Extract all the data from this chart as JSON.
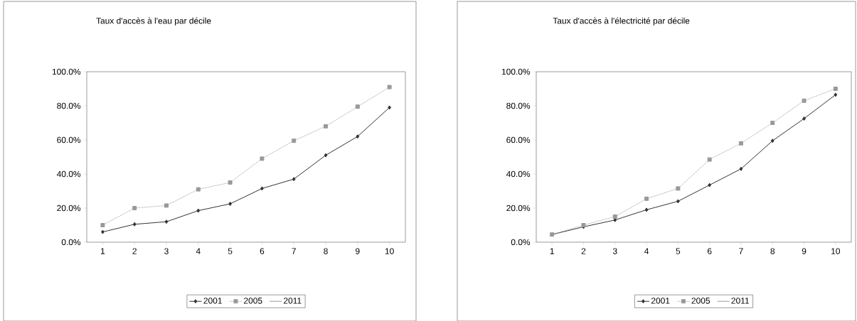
{
  "chart_data": [
    {
      "type": "line",
      "title": "Taux d'accès à l'eau par décile",
      "categories": [
        "1",
        "2",
        "3",
        "4",
        "5",
        "6",
        "7",
        "8",
        "9",
        "10"
      ],
      "series": [
        {
          "name": "2001",
          "color": "#333333",
          "marker": "diamond",
          "line_style": "solid",
          "values": [
            6,
            10.5,
            12,
            18.5,
            22.5,
            31.5,
            37,
            51,
            62,
            79
          ]
        },
        {
          "name": "2005",
          "color": "#999999",
          "marker": "square",
          "line_style": "dotted",
          "values": [
            10,
            20,
            21.5,
            31,
            35,
            49,
            59.5,
            68,
            79.5,
            91
          ]
        },
        {
          "name": "2011",
          "values": [
            null,
            null,
            null,
            null,
            null,
            null,
            null,
            null,
            null,
            null
          ]
        }
      ],
      "ylim": [
        0,
        100
      ],
      "yticks": [
        {
          "value": 0,
          "label": "0.0%"
        },
        {
          "value": 20,
          "label": "20.0%"
        },
        {
          "value": 40,
          "label": "40.0%"
        },
        {
          "value": 60,
          "label": "60.0%"
        },
        {
          "value": 80,
          "label": "80.0%"
        },
        {
          "value": 100,
          "label": "100.0%"
        }
      ],
      "legend": "bottom",
      "grid": false
    },
    {
      "type": "line",
      "title": "Taux d'accès à l'électricité par décile",
      "categories": [
        "1",
        "2",
        "3",
        "4",
        "5",
        "6",
        "7",
        "8",
        "9",
        "10"
      ],
      "series": [
        {
          "name": "2001",
          "color": "#333333",
          "marker": "diamond",
          "line_style": "solid",
          "values": [
            4.5,
            9,
            13,
            19,
            24,
            33.5,
            43,
            59.5,
            72.5,
            86.5
          ]
        },
        {
          "name": "2005",
          "color": "#999999",
          "marker": "square",
          "line_style": "dotted",
          "values": [
            4.5,
            10,
            15,
            25.5,
            31.5,
            48.5,
            58,
            70,
            83,
            90
          ]
        },
        {
          "name": "2011",
          "values": [
            null,
            null,
            null,
            null,
            null,
            null,
            null,
            null,
            null,
            null
          ]
        }
      ],
      "ylim": [
        0,
        100
      ],
      "yticks": [
        {
          "value": 0,
          "label": "0.0%"
        },
        {
          "value": 20,
          "label": "20.0%"
        },
        {
          "value": 40,
          "label": "40.0%"
        },
        {
          "value": 60,
          "label": "60.0%"
        },
        {
          "value": 80,
          "label": "80.0%"
        },
        {
          "value": 100,
          "label": "100.0%"
        }
      ],
      "legend": "bottom",
      "grid": false
    }
  ]
}
